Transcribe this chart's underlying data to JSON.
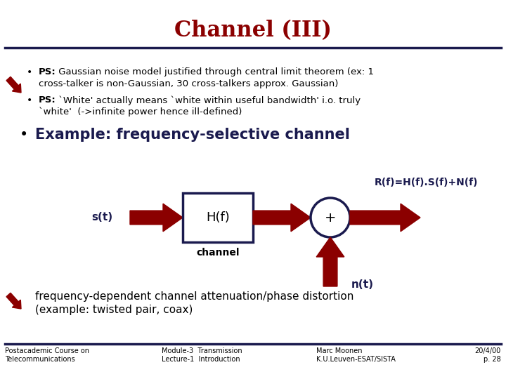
{
  "title": "Channel (III)",
  "title_color": "#8B0000",
  "title_fontsize": 22,
  "bg_color": "#FFFFFF",
  "dark_navy": "#1a1a4e",
  "dark_red": "#8B0000",
  "bullet3_text": "Example: frequency-selective channel",
  "diagram_label_st": "s(t)",
  "diagram_label_hf": "H(f)",
  "diagram_label_plus": "+",
  "diagram_label_channel": "channel",
  "diagram_label_nt": "n(t)",
  "diagram_label_rf": "R(f)=H(f).S(f)+N(f)",
  "bottom_text1": "frequency-dependent channel attenuation/phase distortion",
  "bottom_text2": "(example: twisted pair, coax)",
  "footer_left1": "Postacademic Course on",
  "footer_left2": "Telecommunications",
  "footer_mid1": "Module-3  Transmission",
  "footer_mid2": "Lecture-1  Introduction",
  "footer_right1": "Marc Moonen",
  "footer_right2": "K.U.Leuven-ESAT/SISTA",
  "footer_date1": "20/4/00",
  "footer_date2": "p. 28"
}
